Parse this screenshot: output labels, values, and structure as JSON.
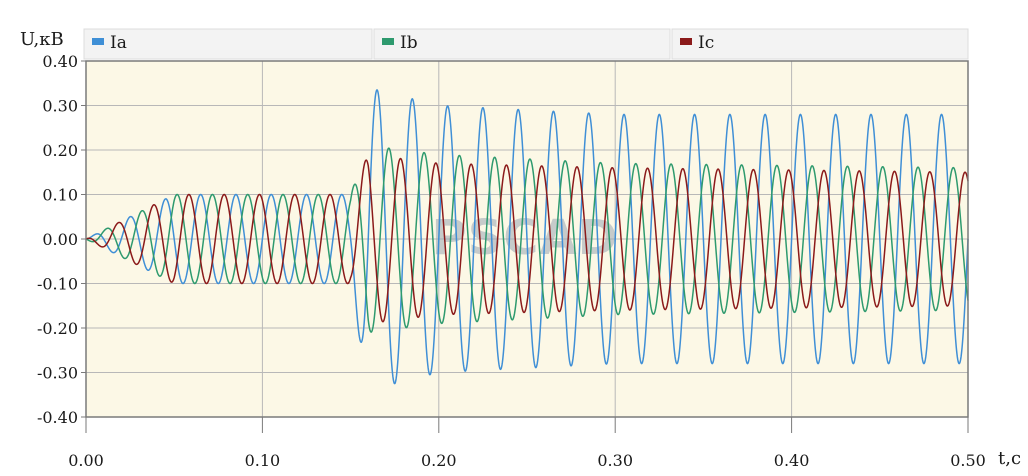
{
  "chart_data": {
    "type": "line",
    "title": "",
    "ylabel": "U,кВ",
    "xlabel": "t,c",
    "xlim": [
      0.0,
      0.5
    ],
    "ylim": [
      -0.4,
      0.4
    ],
    "x_ticks": [
      "0.00",
      "0.10",
      "0.20",
      "0.30",
      "0.40",
      "0.50"
    ],
    "y_ticks": [
      "0.40",
      "0.30",
      "0.20",
      "0.10",
      "0.00",
      "-0.10",
      "-0.20",
      "-0.30",
      "-0.40"
    ],
    "grid": true,
    "legend_position": "top",
    "watermark": "PSCAD",
    "frequency_hz": 50,
    "phase_shift_deg": [
      0,
      -120,
      120
    ],
    "fault_time": 0.15,
    "series": [
      {
        "name": "Ia",
        "color": "#3f8fd6",
        "envelope": {
          "t": [
            0.0,
            0.05,
            0.15,
            0.16,
            0.2,
            0.3,
            0.5
          ],
          "amplitude": [
            0.0,
            0.1,
            0.1,
            0.34,
            0.3,
            0.28,
            0.28
          ]
        }
      },
      {
        "name": "Ib",
        "color": "#2e9a6e",
        "envelope": {
          "t": [
            0.0,
            0.05,
            0.15,
            0.16,
            0.2,
            0.3,
            0.5
          ],
          "amplitude": [
            0.0,
            0.1,
            0.1,
            0.21,
            0.19,
            0.17,
            0.16
          ]
        }
      },
      {
        "name": "Ic",
        "color": "#8b1a1a",
        "envelope": {
          "t": [
            0.0,
            0.05,
            0.15,
            0.16,
            0.2,
            0.3,
            0.5
          ],
          "amplitude": [
            0.0,
            0.1,
            0.1,
            0.19,
            0.17,
            0.16,
            0.15
          ]
        }
      }
    ]
  },
  "colors": {
    "plot_background": "#fcf8e6",
    "grid": "#b8b8b8",
    "frame": "#7a7a7a",
    "legend_background": "#f3f3f3"
  }
}
